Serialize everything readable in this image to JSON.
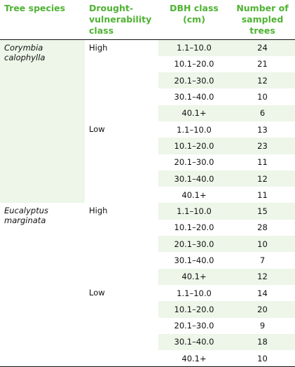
{
  "header": {
    "species": "Tree species",
    "drought": "Drought-vulnerability class",
    "dbh": "DBH class (cm)",
    "count": "Number of sampled trees"
  },
  "colors": {
    "header_green": "#4fb233",
    "shade": "#edf6e8"
  },
  "groups": [
    {
      "species": "Corymbia calophylla",
      "classes": [
        {
          "label": "High",
          "rows": [
            {
              "dbh": "1.1–10.0",
              "n": "24"
            },
            {
              "dbh": "10.1–20.0",
              "n": "21"
            },
            {
              "dbh": "20.1–30.0",
              "n": "12"
            },
            {
              "dbh": "30.1–40.0",
              "n": "10"
            },
            {
              "dbh": "40.1+",
              "n": "6"
            }
          ]
        },
        {
          "label": "Low",
          "rows": [
            {
              "dbh": "1.1–10.0",
              "n": "13"
            },
            {
              "dbh": "10.1–20.0",
              "n": "23"
            },
            {
              "dbh": "20.1–30.0",
              "n": "11"
            },
            {
              "dbh": "30.1–40.0",
              "n": "12"
            },
            {
              "dbh": "40.1+",
              "n": "11"
            }
          ]
        }
      ]
    },
    {
      "species": "Eucalyptus marginata",
      "classes": [
        {
          "label": "High",
          "rows": [
            {
              "dbh": "1.1–10.0",
              "n": "15"
            },
            {
              "dbh": "10.1–20.0",
              "n": "28"
            },
            {
              "dbh": "20.1–30.0",
              "n": "10"
            },
            {
              "dbh": "30.1–40.0",
              "n": "7"
            },
            {
              "dbh": "40.1+",
              "n": "12"
            }
          ]
        },
        {
          "label": "Low",
          "rows": [
            {
              "dbh": "1.1–10.0",
              "n": "14"
            },
            {
              "dbh": "10.1–20.0",
              "n": "20"
            },
            {
              "dbh": "20.1–30.0",
              "n": "9"
            },
            {
              "dbh": "30.1–40.0",
              "n": "18"
            },
            {
              "dbh": "40.1+",
              "n": "10"
            }
          ]
        }
      ]
    }
  ]
}
